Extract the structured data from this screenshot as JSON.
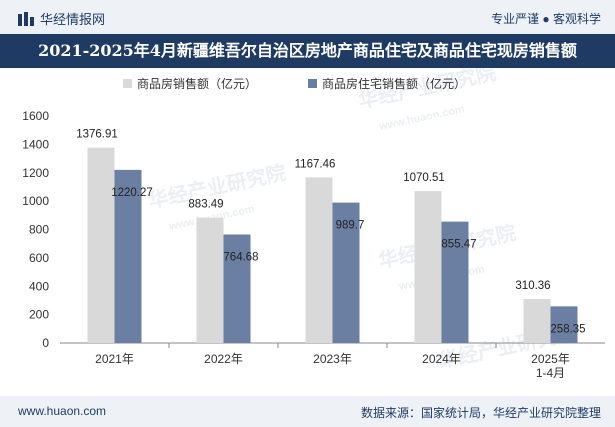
{
  "header": {
    "brand": "华经情报网",
    "tagline": "专业严谨 ● 客观科学"
  },
  "colors": {
    "band": "#1f3b63",
    "band_light": "#eef2f7",
    "series1": "#d9d9d9",
    "series2": "#6b7fa3"
  },
  "chart_data": {
    "type": "bar",
    "title": "2021-2025年4月新疆维吾尔自治区房地产商品住宅及商品住宅现房销售额",
    "categories": [
      "2021年",
      "2022年",
      "2023年",
      "2024年",
      "2025年\n1-4月"
    ],
    "series": [
      {
        "name": "商品房销售额（亿元）",
        "values": [
          1376.91,
          883.49,
          1167.46,
          1070.51,
          310.36
        ]
      },
      {
        "name": "商品房住宅销售额（亿元）",
        "values": [
          1220.27,
          764.68,
          989.7,
          855.47,
          258.35
        ]
      }
    ],
    "value_labels": [
      [
        "1376.91",
        "883.49",
        "1167.46",
        "1070.51",
        "310.36"
      ],
      [
        "1220.27",
        "764.68",
        "989.7",
        "855.47",
        "258.35"
      ]
    ],
    "ylim": [
      0,
      1600
    ],
    "yticks": [
      0,
      200,
      400,
      600,
      800,
      1000,
      1200,
      1400,
      1600
    ],
    "legend_position": "top",
    "grid": false
  },
  "watermarks": [
    "华经产业研究院",
    "www.huaon.com"
  ],
  "footer": {
    "site": "www.huaon.com",
    "source": "数据来源：国家统计局，华经产业研究院整理"
  }
}
